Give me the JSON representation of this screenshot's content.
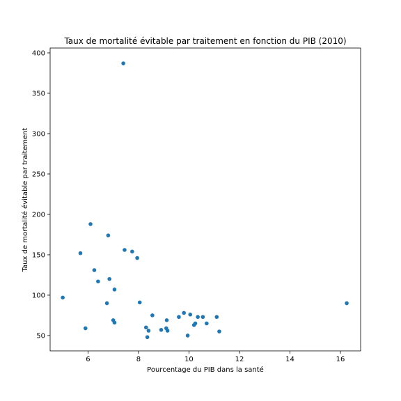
{
  "chart_data": {
    "type": "scatter",
    "title": "Taux de mortalité évitable par traitement en fonction du PIB (2010)",
    "xlabel": "Pourcentage du PIB dans la santé",
    "ylabel": "Taux de mortalité évitable par traitement",
    "xlim": [
      4.5,
      16.8
    ],
    "ylim": [
      31,
      406
    ],
    "xticks": [
      6,
      8,
      10,
      12,
      14,
      16
    ],
    "yticks": [
      50,
      100,
      150,
      200,
      250,
      300,
      350,
      400
    ],
    "grid": false,
    "marker_color": "#1f77b4",
    "points": [
      {
        "x": 5.0,
        "y": 97
      },
      {
        "x": 5.7,
        "y": 152
      },
      {
        "x": 5.9,
        "y": 59
      },
      {
        "x": 6.1,
        "y": 188
      },
      {
        "x": 6.25,
        "y": 131
      },
      {
        "x": 6.4,
        "y": 117
      },
      {
        "x": 6.75,
        "y": 90
      },
      {
        "x": 6.8,
        "y": 174
      },
      {
        "x": 6.85,
        "y": 120
      },
      {
        "x": 7.0,
        "y": 69
      },
      {
        "x": 7.05,
        "y": 107
      },
      {
        "x": 7.05,
        "y": 66
      },
      {
        "x": 7.4,
        "y": 387
      },
      {
        "x": 7.45,
        "y": 156
      },
      {
        "x": 7.75,
        "y": 154
      },
      {
        "x": 7.95,
        "y": 146
      },
      {
        "x": 8.05,
        "y": 91
      },
      {
        "x": 8.3,
        "y": 60
      },
      {
        "x": 8.35,
        "y": 48
      },
      {
        "x": 8.4,
        "y": 56
      },
      {
        "x": 8.55,
        "y": 75
      },
      {
        "x": 8.9,
        "y": 57
      },
      {
        "x": 9.1,
        "y": 59
      },
      {
        "x": 9.12,
        "y": 69
      },
      {
        "x": 9.15,
        "y": 56
      },
      {
        "x": 9.6,
        "y": 73
      },
      {
        "x": 9.8,
        "y": 78
      },
      {
        "x": 9.95,
        "y": 50
      },
      {
        "x": 10.05,
        "y": 76
      },
      {
        "x": 10.2,
        "y": 63
      },
      {
        "x": 10.25,
        "y": 65
      },
      {
        "x": 10.35,
        "y": 73
      },
      {
        "x": 10.55,
        "y": 73
      },
      {
        "x": 10.7,
        "y": 65
      },
      {
        "x": 11.1,
        "y": 73
      },
      {
        "x": 11.2,
        "y": 55
      },
      {
        "x": 16.25,
        "y": 90
      }
    ]
  }
}
